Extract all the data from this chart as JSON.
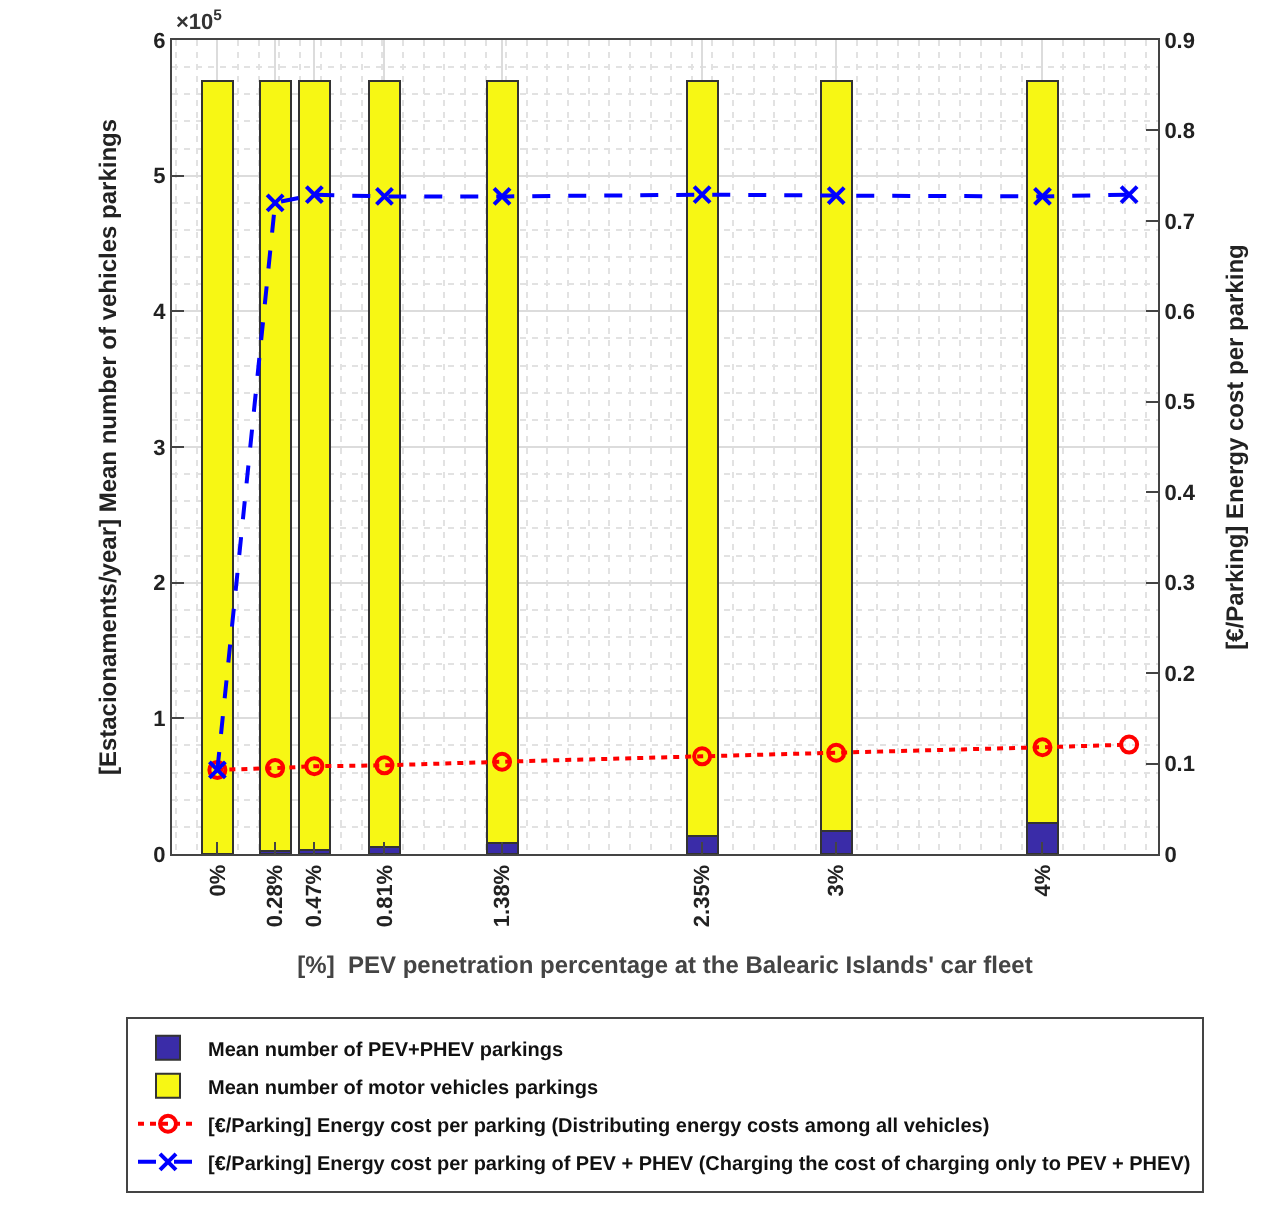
{
  "chart_data": {
    "type": "bar",
    "stacked": true,
    "xlabel": "[%]  PEV penetration percentage at the Balearic Islands' car fleet",
    "ylabel": "[Estacionaments/year] Mean number of vehicles parkings",
    "y2label": "[€/Parking] Energy cost per parking",
    "annotations": [
      "×10$^{5}$"
    ],
    "x": [
      0,
      0.28,
      0.47,
      0.81,
      1.38,
      2.35,
      3,
      4
    ],
    "xlim": [
      -0.22,
      4.56
    ],
    "xticks": [
      {
        "value": 0,
        "label": "0%"
      },
      {
        "value": 0.28,
        "label": "0.28%"
      },
      {
        "value": 0.47,
        "label": "0.47%"
      },
      {
        "value": 0.81,
        "label": "0.81%"
      },
      {
        "value": 1.38,
        "label": "1.38%"
      },
      {
        "value": 2.35,
        "label": "2.35%"
      },
      {
        "value": 3,
        "label": "3%"
      },
      {
        "value": 4,
        "label": "4%"
      }
    ],
    "ylim": [
      0,
      6
    ],
    "yticks": [
      0,
      1,
      2,
      3,
      4,
      5,
      6
    ],
    "y2lim": [
      0,
      0.9
    ],
    "y2ticks": [
      0,
      0.1,
      0.2,
      0.3,
      0.4,
      0.5,
      0.6,
      0.7,
      0.8,
      0.9
    ],
    "grid": true,
    "legend": "bottom",
    "series": [
      {
        "name": "Mean number of PEV+PHEV parkings",
        "color": "#3a2ca8",
        "values": [
          0,
          0.02,
          0.03,
          0.05,
          0.08,
          0.13,
          0.17,
          0.23
        ]
      },
      {
        "name": "Mean number of motor vehicles parkings",
        "color": "#f7f714",
        "values": [
          5.7,
          5.68,
          5.67,
          5.65,
          5.62,
          5.57,
          5.53,
          5.47
        ]
      },
      {
        "name": "[€/Parking] Energy cost per parking (Distributing energy costs among all vehicles)",
        "type": "line",
        "axis": "y2",
        "color": "#ff0000",
        "marker": "circle",
        "line_style": "dotted",
        "x": [
          0,
          0.28,
          0.47,
          0.81,
          1.38,
          2.35,
          3,
          4,
          4.42
        ],
        "values": [
          0.093,
          0.095,
          0.097,
          0.098,
          0.102,
          0.108,
          0.112,
          0.118,
          0.121
        ]
      },
      {
        "name": "[€/Parking] Energy cost per parking of PEV + PHEV (Charging the cost of charging only to PEV + PHEV)",
        "type": "line",
        "axis": "y2",
        "color": "#0000ff",
        "marker": "cross",
        "line_style": "dashed",
        "x": [
          0,
          0.28,
          0.47,
          0.81,
          1.38,
          2.35,
          3,
          4,
          4.42
        ],
        "values": [
          0.093,
          0.72,
          0.729,
          0.727,
          0.727,
          0.729,
          0.728,
          0.727,
          0.729
        ]
      }
    ]
  }
}
